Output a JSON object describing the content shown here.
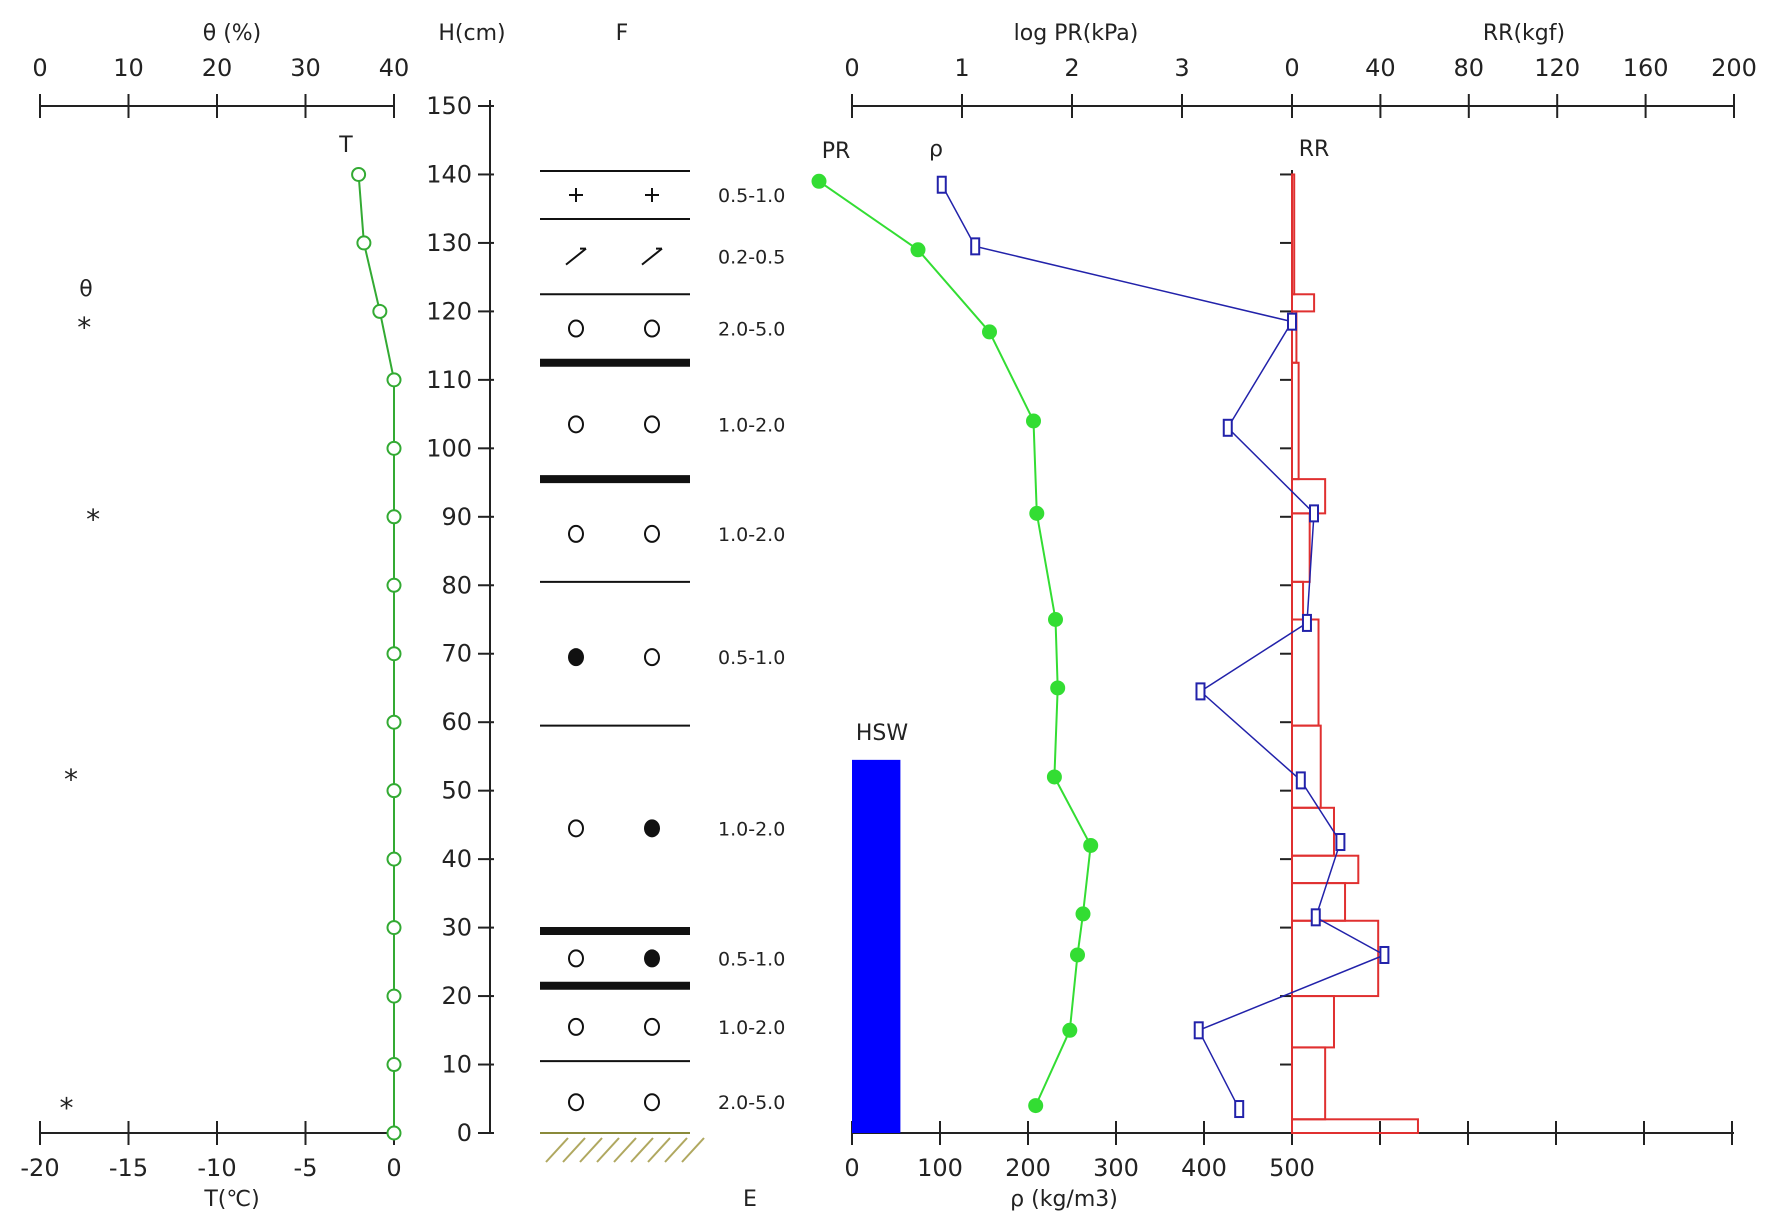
{
  "chart_data": {
    "type": "line",
    "panels": {
      "temperature_moisture": {
        "top_axis_title": "θ (%)",
        "top_axis_ticks": [
          "0",
          "10",
          "20",
          "30",
          "40"
        ],
        "bottom_axis_title": "T(℃)",
        "bottom_axis_ticks": [
          "-20",
          "-15",
          "-10",
          "-5",
          "0"
        ],
        "t_series_label": "T",
        "theta_series_label": "θ",
        "series_color": "#33aa33",
        "temperature": [
          {
            "h": 140,
            "t": -2.0
          },
          {
            "h": 130,
            "t": -1.7
          },
          {
            "h": 120,
            "t": -0.8
          },
          {
            "h": 110,
            "t": 0
          },
          {
            "h": 100,
            "t": 0
          },
          {
            "h": 90,
            "t": 0
          },
          {
            "h": 80,
            "t": 0
          },
          {
            "h": 70,
            "t": 0
          },
          {
            "h": 60,
            "t": 0
          },
          {
            "h": 50,
            "t": 0
          },
          {
            "h": 40,
            "t": 0
          },
          {
            "h": 30,
            "t": 0
          },
          {
            "h": 20,
            "t": 0
          },
          {
            "h": 10,
            "t": 0
          },
          {
            "h": 0,
            "t": 0
          }
        ],
        "theta": [
          {
            "h": 118,
            "theta": 5.0
          },
          {
            "h": 90,
            "theta": 6.0
          },
          {
            "h": 52,
            "theta": 3.5
          },
          {
            "h": 4,
            "theta": 3.0
          }
        ]
      },
      "height_axis": {
        "title": "H(cm)",
        "ticks": [
          "0",
          "10",
          "20",
          "30",
          "40",
          "50",
          "60",
          "70",
          "80",
          "90",
          "100",
          "110",
          "120",
          "130",
          "140",
          "150"
        ]
      },
      "stratigraphy": {
        "title": "F",
        "bottom_label": "E",
        "boundaries": [
          {
            "h": 140.5,
            "style": "thin"
          },
          {
            "h": 133.5,
            "style": "thin"
          },
          {
            "h": 122.5,
            "style": "thin"
          },
          {
            "h": 112.5,
            "style": "thick"
          },
          {
            "h": 95.5,
            "style": "thick"
          },
          {
            "h": 80.5,
            "style": "thin"
          },
          {
            "h": 59.5,
            "style": "thin"
          },
          {
            "h": 29.5,
            "style": "thick"
          },
          {
            "h": 21.5,
            "style": "thick"
          },
          {
            "h": 10.5,
            "style": "thin"
          }
        ],
        "layers": [
          {
            "h": 137,
            "symbols": [
              "+",
              "+"
            ],
            "size": "0.5-1.0"
          },
          {
            "h": 128,
            "symbols": [
              "/",
              "/"
            ],
            "size": "0.2-0.5"
          },
          {
            "h": 117.5,
            "symbols": [
              "o",
              "o"
            ],
            "size": "2.0-5.0"
          },
          {
            "h": 103.5,
            "symbols": [
              "o",
              "o"
            ],
            "size": "1.0-2.0"
          },
          {
            "h": 87.5,
            "symbols": [
              "o",
              "o"
            ],
            "size": "1.0-2.0"
          },
          {
            "h": 69.5,
            "symbols": [
              "●",
              "o"
            ],
            "size": "0.5-1.0"
          },
          {
            "h": 44.5,
            "symbols": [
              "o",
              "●"
            ],
            "size": "1.0-2.0"
          },
          {
            "h": 25.5,
            "symbols": [
              "o",
              "●"
            ],
            "size": "0.5-1.0"
          },
          {
            "h": 15.5,
            "symbols": [
              "o",
              "o"
            ],
            "size": "1.0-2.0"
          },
          {
            "h": 4.5,
            "symbols": [
              "o",
              "o"
            ],
            "size": "2.0-5.0"
          }
        ]
      },
      "pr_density": {
        "top_axis_title": "log PR(kPa)",
        "top_axis_ticks": [
          "0",
          "1",
          "2",
          "3"
        ],
        "bottom_axis_title": "ρ (kg/m3)",
        "bottom_axis_ticks": [
          "0",
          "100",
          "200",
          "300",
          "400",
          "500"
        ],
        "pr_label": "PR",
        "rho_label": "ρ",
        "hsw_label": "HSW",
        "pr_color": "#33dd33",
        "rho_color": "#2222aa",
        "hsw_color": "#0000ff",
        "hsw_value_rho": 55,
        "hsw_height": 54.5,
        "log_pr": [
          {
            "h": 139,
            "v": -0.3
          },
          {
            "h": 129,
            "v": 0.6
          },
          {
            "h": 117,
            "v": 1.25
          },
          {
            "h": 104,
            "v": 1.65
          },
          {
            "h": 90.5,
            "v": 1.68
          },
          {
            "h": 75,
            "v": 1.85
          },
          {
            "h": 65,
            "v": 1.87
          },
          {
            "h": 52,
            "v": 1.84
          },
          {
            "h": 42,
            "v": 2.17
          },
          {
            "h": 32,
            "v": 2.1
          },
          {
            "h": 26,
            "v": 2.05
          },
          {
            "h": 15,
            "v": 1.98
          },
          {
            "h": 4,
            "v": 1.67
          }
        ],
        "rho": [
          {
            "h": 138.5,
            "v": 102
          },
          {
            "h": 129.5,
            "v": 140
          },
          {
            "h": 118.5,
            "v": 500
          },
          {
            "h": 103,
            "v": 427
          },
          {
            "h": 90.5,
            "v": 525
          },
          {
            "h": 74.5,
            "v": 517
          },
          {
            "h": 64.5,
            "v": 396
          },
          {
            "h": 51.5,
            "v": 510
          },
          {
            "h": 42.5,
            "v": 555
          },
          {
            "h": 31.5,
            "v": 527
          },
          {
            "h": 26,
            "v": 605
          },
          {
            "h": 15,
            "v": 394
          },
          {
            "h": 3.5,
            "v": 440
          }
        ]
      },
      "ram_resistance": {
        "top_axis_title": "RR(kgf)",
        "top_axis_ticks": [
          "0",
          "40",
          "80",
          "120",
          "160",
          "200"
        ],
        "rr_label": "RR",
        "rr_color": "#e03030",
        "blocks": [
          {
            "h_bottom": 122.5,
            "h_top": 140,
            "v": 1
          },
          {
            "h_bottom": 120,
            "h_top": 122.5,
            "v": 10
          },
          {
            "h_bottom": 112.5,
            "h_top": 120,
            "v": 2
          },
          {
            "h_bottom": 95.5,
            "h_top": 112.5,
            "v": 3
          },
          {
            "h_bottom": 90.5,
            "h_top": 95.5,
            "v": 15
          },
          {
            "h_bottom": 80.5,
            "h_top": 90.5,
            "v": 8
          },
          {
            "h_bottom": 75,
            "h_top": 80.5,
            "v": 5
          },
          {
            "h_bottom": 59.5,
            "h_top": 75,
            "v": 12
          },
          {
            "h_bottom": 47.5,
            "h_top": 59.5,
            "v": 13
          },
          {
            "h_bottom": 40.5,
            "h_top": 47.5,
            "v": 19
          },
          {
            "h_bottom": 36.5,
            "h_top": 40.5,
            "v": 30
          },
          {
            "h_bottom": 31,
            "h_top": 36.5,
            "v": 24
          },
          {
            "h_bottom": 20,
            "h_top": 31,
            "v": 39
          },
          {
            "h_bottom": 12.5,
            "h_top": 20,
            "v": 19
          },
          {
            "h_bottom": 2,
            "h_top": 12.5,
            "v": 15
          },
          {
            "h_bottom": 0,
            "h_top": 2,
            "v": 57
          }
        ]
      }
    }
  }
}
